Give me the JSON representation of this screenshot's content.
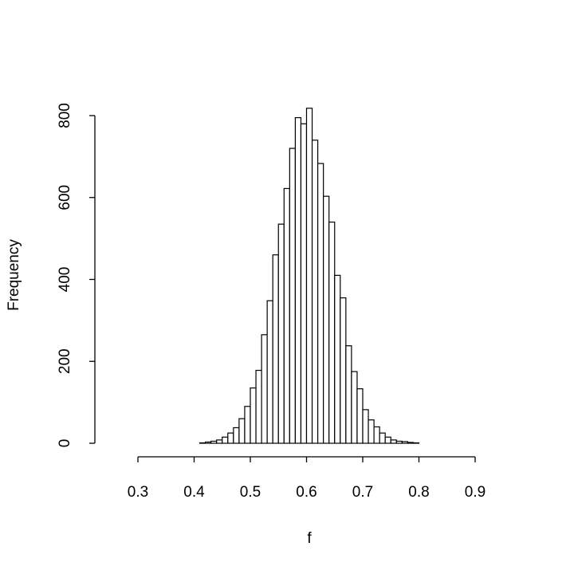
{
  "chart_data": {
    "type": "histogram",
    "x_label": "f",
    "y_label": "Frequency",
    "bins": [
      0.41,
      0.42,
      0.43,
      0.44,
      0.45,
      0.46,
      0.47,
      0.48,
      0.49,
      0.5,
      0.51,
      0.52,
      0.53,
      0.54,
      0.55,
      0.56,
      0.57,
      0.58,
      0.59,
      0.6,
      0.61,
      0.62,
      0.63,
      0.64,
      0.65,
      0.66,
      0.67,
      0.68,
      0.69,
      0.7,
      0.71,
      0.72,
      0.73,
      0.74,
      0.75,
      0.76,
      0.77,
      0.78,
      0.79,
      0.8
    ],
    "values": [
      1,
      3,
      5,
      8,
      15,
      25,
      38,
      60,
      90,
      135,
      178,
      265,
      348,
      460,
      535,
      622,
      720,
      795,
      780,
      818,
      740,
      683,
      603,
      540,
      410,
      355,
      238,
      175,
      133,
      82,
      57,
      40,
      25,
      15,
      8,
      5,
      4,
      2,
      1
    ],
    "color": "#ffffff",
    "xlim": [
      0.3,
      0.9
    ],
    "xticks": [
      0.3,
      0.4,
      0.5,
      0.6,
      0.7,
      0.8,
      0.9
    ],
    "ylim": [
      0,
      800
    ],
    "yticks": [
      0,
      200,
      400,
      600,
      800
    ]
  }
}
